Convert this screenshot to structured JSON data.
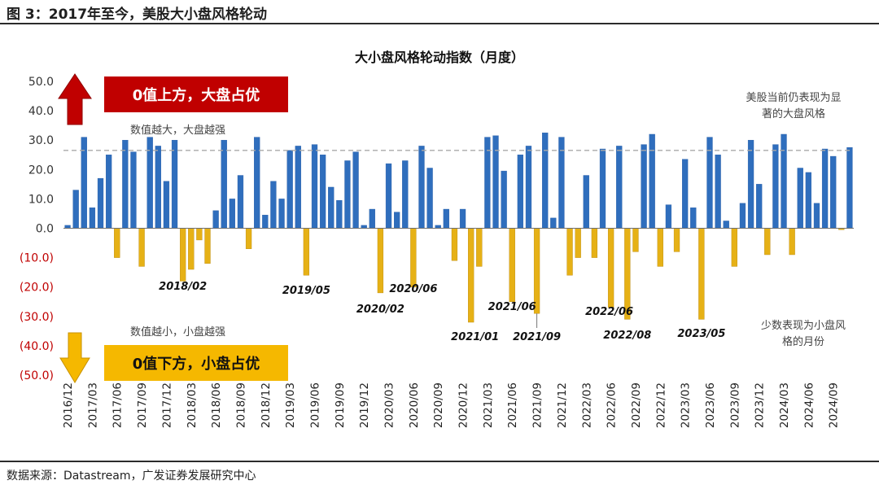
{
  "figure": {
    "title": "图 3：2017年至今，美股大小盘风格轮动",
    "source": "数据来源：Datastream，广发证券发展研究中心"
  },
  "chart_data": {
    "type": "bar",
    "title": "大小盘风格轮动指数（月度）",
    "ylim": [
      -50,
      50
    ],
    "yticks": [
      {
        "v": 50,
        "label": "50.0"
      },
      {
        "v": 40,
        "label": "40.0"
      },
      {
        "v": 30,
        "label": "30.0"
      },
      {
        "v": 20,
        "label": "20.0"
      },
      {
        "v": 10,
        "label": "10.0"
      },
      {
        "v": 0,
        "label": "0.0"
      },
      {
        "v": -10,
        "label": "(10.0)"
      },
      {
        "v": -20,
        "label": "(20.0)"
      },
      {
        "v": -30,
        "label": "(30.0)"
      },
      {
        "v": -40,
        "label": "(40.0)"
      },
      {
        "v": -50,
        "label": "(50.0)"
      }
    ],
    "positive_color": "#2f6ebd",
    "negative_color": "#e6b116",
    "negative_tick_color": "#c00000",
    "reference_line": 26.5,
    "x_tick_labels": [
      "2016/12",
      "2017/03",
      "2017/06",
      "2017/09",
      "2017/12",
      "2018/03",
      "2018/06",
      "2018/09",
      "2018/12",
      "2019/03",
      "2019/06",
      "2019/09",
      "2019/12",
      "2020/03",
      "2020/06",
      "2020/09",
      "2020/12",
      "2021/03",
      "2021/06",
      "2021/09",
      "2021/12",
      "2022/03",
      "2022/06",
      "2022/09",
      "2022/12",
      "2023/03",
      "2023/06",
      "2023/09",
      "2023/12",
      "2024/03",
      "2024/06",
      "2024/09"
    ],
    "values": [
      1,
      13,
      31,
      7,
      17,
      25,
      -10,
      30,
      26,
      -13,
      31,
      28,
      16,
      30,
      -18,
      -14,
      -4,
      -12,
      6,
      30,
      10,
      18,
      -7,
      31,
      4.5,
      16,
      10,
      26.5,
      28,
      -16,
      28.5,
      25,
      14,
      9.5,
      23,
      26,
      1,
      6.5,
      -22,
      22,
      5.5,
      23,
      -20,
      28,
      20.5,
      1,
      6.5,
      -11,
      6.5,
      -32,
      -13,
      31,
      31.5,
      19.5,
      -25,
      25,
      28,
      -29,
      32.5,
      3.5,
      31,
      -16,
      -10,
      18,
      -10,
      27,
      -27,
      28,
      -31,
      -8,
      28.5,
      32,
      -13,
      8,
      -8,
      23.5,
      7,
      -31,
      31,
      25,
      2.5,
      -13,
      8.5,
      30,
      15,
      -9,
      28.5,
      32,
      -9,
      20.5,
      19,
      8.5,
      27,
      24.5,
      -0.5,
      27.5
    ],
    "date_annotations": [
      {
        "label": "2018/02",
        "index": 14
      },
      {
        "label": "2019/05",
        "index": 29
      },
      {
        "label": "2020/02",
        "index": 38
      },
      {
        "label": "2020/06",
        "index": 42
      },
      {
        "label": "2021/01",
        "index": 49
      },
      {
        "label": "2021/06",
        "index": 54
      },
      {
        "label": "2021/09",
        "index": 57
      },
      {
        "label": "2022/06",
        "index": 66
      },
      {
        "label": "2022/08",
        "index": 68
      },
      {
        "label": "2023/05",
        "index": 77
      }
    ],
    "callouts": {
      "top_box": "0值上方，大盘占优",
      "bottom_box": "0值下方，小盘占优",
      "top_note": "数值越大，大盘越强",
      "bottom_note": "数值越小，小盘越强",
      "right_top_note": [
        "美股当前仍表现为显",
        "著的大盘风格"
      ],
      "right_bottom_note": [
        "少数表现为小盘风",
        "格的月份"
      ]
    },
    "box_colors": {
      "top": "#c00000",
      "bottom": "#f5b800"
    },
    "grid": false,
    "legend": "none"
  }
}
